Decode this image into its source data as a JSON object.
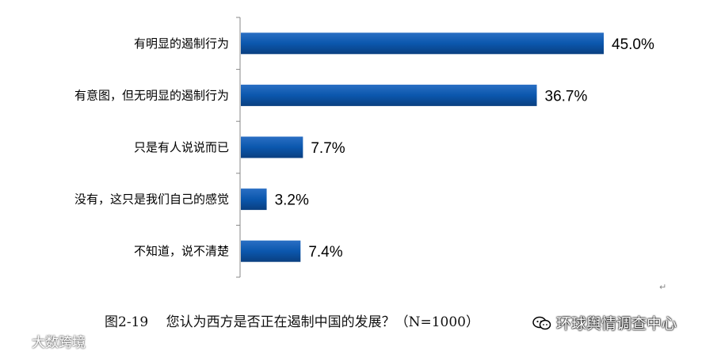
{
  "chart_data": {
    "type": "bar",
    "orientation": "horizontal",
    "categories": [
      "有明显的遏制行为",
      "有意图，但无明显的遏制行为",
      "只是有人说说而已",
      "没有，这只是我们自己的感觉",
      "不知道，说不清楚"
    ],
    "values": [
      45.0,
      36.7,
      7.7,
      3.2,
      7.4
    ],
    "value_labels": [
      "45.0%",
      "36.7%",
      "7.7%",
      "3.2%",
      "7.4%"
    ],
    "xlim": [
      0,
      50
    ],
    "grid": false,
    "bar_color": "#0a4f9e"
  },
  "caption": "图2-19　 您认为西方是否正在遏制中国的发展？（N=1000）",
  "watermarks": {
    "right": "环球舆情调查中心",
    "left": "大数跨境"
  },
  "paragraph_mark": "↵"
}
